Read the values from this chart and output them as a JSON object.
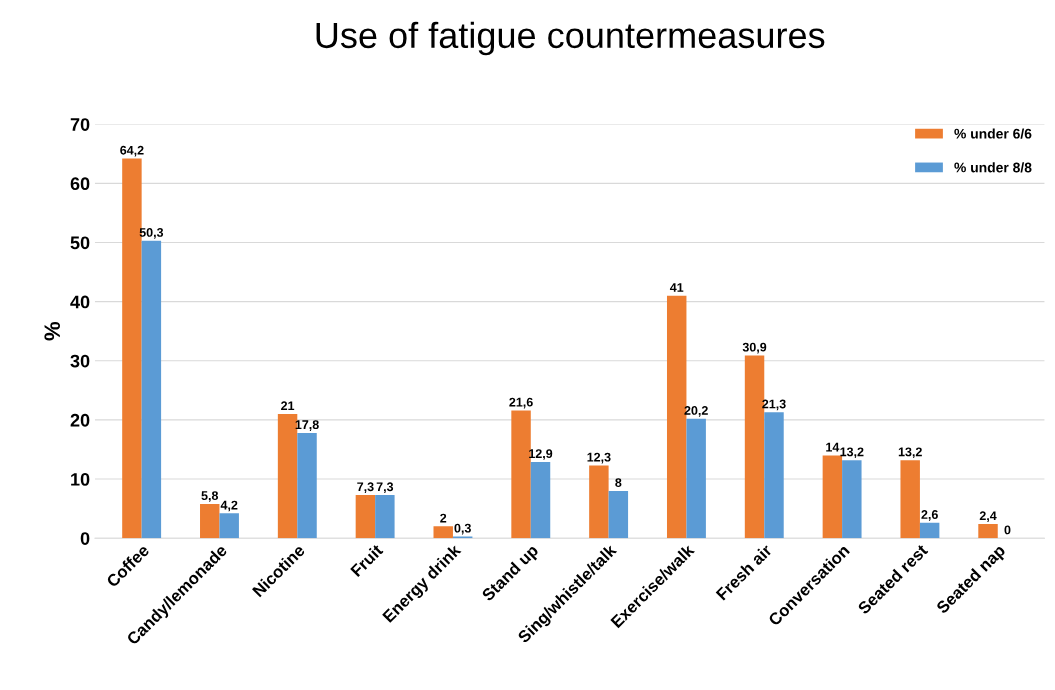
{
  "chart_data": {
    "type": "bar",
    "title": "Use of fatigue countermeasures",
    "ylabel": "%",
    "categories": [
      "Coffee",
      "Candy/lemonade",
      "Nicotine",
      "Fruit",
      "Energy drink",
      "Stand up",
      "Sing/whistle/talk",
      "Exercise/walk",
      "Fresh air",
      "Conversation",
      "Seated rest",
      "Seated nap"
    ],
    "series": [
      {
        "name": "% under 6/6",
        "color": "#ed7d31",
        "values": [
          64.2,
          5.8,
          21,
          7.3,
          2,
          21.6,
          12.3,
          41,
          30.9,
          14,
          13.2,
          2.4
        ],
        "value_labels": [
          "64,2",
          "5,8",
          "21",
          "7,3",
          "2",
          "21,6",
          "12,3",
          "41",
          "30,9",
          "14",
          "13,2",
          "2,4"
        ]
      },
      {
        "name": "% under 8/8",
        "color": "#5b9bd5",
        "values": [
          50.3,
          4.2,
          17.8,
          7.3,
          0.3,
          12.9,
          8,
          20.2,
          21.3,
          13.2,
          2.6,
          0
        ],
        "value_labels": [
          "50,3",
          "4,2",
          "17,8",
          "7,3",
          "0,3",
          "12,9",
          "8",
          "20,2",
          "21,3",
          "13,2",
          "2,6",
          "0"
        ]
      }
    ],
    "ylim": [
      0,
      70
    ],
    "yticks": [
      0,
      10,
      20,
      30,
      40,
      50,
      60,
      70
    ],
    "grid": "y",
    "legend": "top right"
  }
}
